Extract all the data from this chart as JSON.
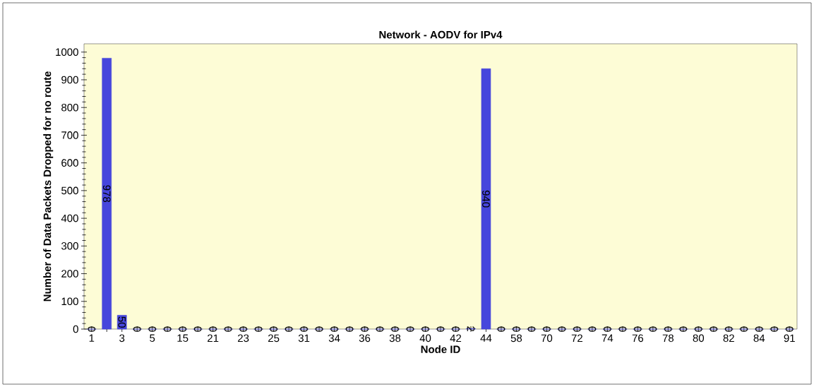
{
  "chart_data": {
    "type": "bar",
    "title": "Network - AODV for IPv4",
    "xlabel": "Node ID",
    "ylabel": "Number of Data Packets Dropped for no route",
    "categories": [
      "1",
      null,
      "3",
      null,
      "5",
      null,
      "15",
      null,
      "21",
      null,
      "23",
      null,
      "25",
      null,
      "31",
      null,
      "34",
      null,
      "36",
      null,
      "38",
      null,
      "40",
      null,
      "42",
      null,
      "44",
      null,
      "58",
      null,
      "70",
      null,
      "72",
      null,
      "74",
      null,
      "76",
      null,
      "78",
      null,
      "80",
      null,
      "82",
      null,
      "84",
      null,
      "91"
    ],
    "values": [
      0,
      978,
      50,
      0,
      0,
      0,
      0,
      0,
      0,
      0,
      0,
      0,
      0,
      0,
      0,
      0,
      0,
      0,
      0,
      0,
      0,
      0,
      0,
      0,
      0,
      2,
      940,
      0,
      0,
      0,
      0,
      0,
      0,
      0,
      0,
      0,
      0,
      0,
      0,
      0,
      0,
      0,
      0,
      0,
      0,
      0,
      0
    ],
    "color": "#4646dc",
    "ylim": [
      0,
      1030
    ],
    "yticks": [
      0,
      100,
      200,
      300,
      400,
      500,
      600,
      700,
      800,
      900,
      1000
    ],
    "data_labels": true
  }
}
